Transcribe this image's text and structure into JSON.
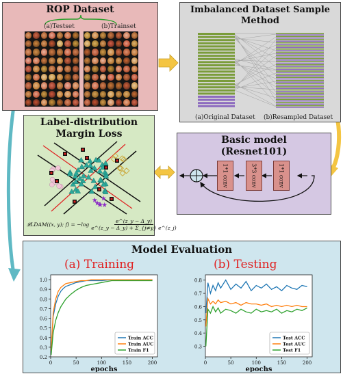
{
  "rop": {
    "title": "ROP Dataset",
    "testset_label": "(a)Testset",
    "trainset_label": "(b)Trainset"
  },
  "imbalanced": {
    "title_line1": "Imbalanced Dataset Sample",
    "title_line2": "Method",
    "original_label": "(a)Original Dataset",
    "resampled_label": "(b)Resampled Dataset"
  },
  "ldam": {
    "title_line1": "Label-distribution",
    "title_line2": "Margin Loss",
    "formula_lhs": "𝓛LDAM((x, y); f) = −log",
    "formula_num": "e^(z_y − Δ_y)",
    "formula_den": "e^(z_y − Δ_y) + Σ_{j≠y} e^(z_j)"
  },
  "basic_model": {
    "title_line1": "Basic model",
    "title_line2": "(Resnet101)",
    "conv1": "1*1 conv",
    "conv2": "3*3 conv",
    "conv3": "1*1 conv"
  },
  "evaluation": {
    "title": "Model Evaluation",
    "training_title": "(a) Training",
    "testing_title": "(b) Testing",
    "xlabel": "epochs"
  },
  "colors": {
    "rop_bg": "#e8b9b9",
    "imbalanced_bg": "#d9d9d9",
    "ldam_bg": "#d6e9c4",
    "basic_bg": "#d5c8e3",
    "eval_bg": "#cfe6ee",
    "arrow_yellow": "#f4c542",
    "arrow_teal": "#5fb9c4",
    "conv_fill": "#d9918c",
    "acc": "#1f77b4",
    "auc": "#ff7f0e",
    "f1": "#2ca02c",
    "chart_title_red": "#e02020"
  },
  "chart_data": [
    {
      "type": "line",
      "title": "(a) Training",
      "xlabel": "epochs",
      "ylabel": "",
      "xlim": [
        0,
        210
      ],
      "ylim": [
        0.2,
        1.05
      ],
      "xticks": [
        "0",
        "50",
        "100",
        "150",
        "200"
      ],
      "yticks": [
        "0.2",
        "0.3",
        "0.4",
        "0.5",
        "0.6",
        "0.7",
        "0.8",
        "0.9",
        "1.0"
      ],
      "legend": "bottom-right",
      "x": [
        1,
        5,
        10,
        15,
        20,
        25,
        30,
        40,
        50,
        60,
        70,
        80,
        100,
        120,
        150,
        180,
        200
      ],
      "series": [
        {
          "name": "Train ACC",
          "values": [
            0.25,
            0.62,
            0.75,
            0.83,
            0.88,
            0.91,
            0.93,
            0.95,
            0.97,
            0.98,
            0.99,
            0.99,
            0.99,
            1.0,
            1.0,
            1.0,
            1.0
          ]
        },
        {
          "name": "Train AUC",
          "values": [
            0.26,
            0.66,
            0.8,
            0.88,
            0.92,
            0.94,
            0.96,
            0.97,
            0.98,
            0.99,
            0.99,
            1.0,
            1.0,
            1.0,
            1.0,
            1.0,
            1.0
          ]
        },
        {
          "name": "Train F1",
          "values": [
            0.22,
            0.45,
            0.58,
            0.66,
            0.72,
            0.76,
            0.8,
            0.85,
            0.89,
            0.92,
            0.94,
            0.95,
            0.97,
            0.99,
            0.99,
            0.99,
            0.99
          ]
        }
      ]
    },
    {
      "type": "line",
      "title": "(b) Testing",
      "xlabel": "epochs",
      "ylabel": "",
      "xlim": [
        0,
        210
      ],
      "ylim": [
        0.22,
        0.84
      ],
      "xticks": [
        "0",
        "50",
        "100",
        "150",
        "200"
      ],
      "yticks": [
        "0.3",
        "0.4",
        "0.5",
        "0.6",
        "0.7",
        "0.8"
      ],
      "legend": "bottom-right",
      "x": [
        1,
        5,
        10,
        15,
        20,
        25,
        30,
        40,
        50,
        60,
        70,
        80,
        90,
        100,
        110,
        120,
        130,
        140,
        150,
        160,
        170,
        180,
        190,
        200
      ],
      "series": [
        {
          "name": "Test ACC",
          "values": [
            0.55,
            0.78,
            0.7,
            0.76,
            0.72,
            0.78,
            0.74,
            0.8,
            0.73,
            0.77,
            0.74,
            0.79,
            0.72,
            0.76,
            0.74,
            0.77,
            0.73,
            0.75,
            0.72,
            0.76,
            0.74,
            0.73,
            0.76,
            0.75
          ]
        },
        {
          "name": "Test AUC",
          "values": [
            0.45,
            0.66,
            0.62,
            0.64,
            0.62,
            0.65,
            0.63,
            0.64,
            0.62,
            0.63,
            0.61,
            0.63,
            0.62,
            0.62,
            0.61,
            0.62,
            0.6,
            0.61,
            0.6,
            0.61,
            0.6,
            0.61,
            0.6,
            0.6
          ]
        },
        {
          "name": "Test F1",
          "values": [
            0.3,
            0.58,
            0.55,
            0.6,
            0.56,
            0.59,
            0.55,
            0.58,
            0.57,
            0.55,
            0.58,
            0.56,
            0.55,
            0.58,
            0.56,
            0.57,
            0.56,
            0.58,
            0.55,
            0.57,
            0.56,
            0.58,
            0.57,
            0.59
          ]
        }
      ]
    }
  ]
}
